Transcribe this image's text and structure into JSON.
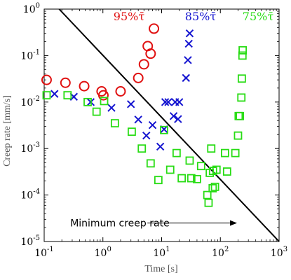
{
  "chart_data": {
    "type": "scatter",
    "xlabel": "Time [s]",
    "ylabel": "Creep rate [mm/s]",
    "xscale": "log",
    "yscale": "log",
    "xlim": [
      0.1,
      1000
    ],
    "ylim": [
      1e-05,
      1
    ],
    "x_ticks": [
      {
        "base": "10",
        "exp": "-1",
        "value": 0.1
      },
      {
        "base": "10",
        "exp": "0",
        "value": 1
      },
      {
        "base": "10",
        "exp": "1",
        "value": 10
      },
      {
        "base": "10",
        "exp": "2",
        "value": 100
      },
      {
        "base": "10",
        "exp": "3",
        "value": 1000
      }
    ],
    "y_ticks": [
      {
        "base": "10",
        "exp": "-5",
        "value": 1e-05
      },
      {
        "base": "10",
        "exp": "-4",
        "value": 0.0001
      },
      {
        "base": "10",
        "exp": "-3",
        "value": 0.001
      },
      {
        "base": "10",
        "exp": "-2",
        "value": 0.01
      },
      {
        "base": "10",
        "exp": "-1",
        "value": 0.1
      },
      {
        "base": "10",
        "exp": "0",
        "value": 1
      }
    ],
    "grid": false,
    "series": [
      {
        "name": "95%τ̄",
        "color": "#e01010",
        "marker": "circle",
        "points": [
          [
            0.11,
            0.03
          ],
          [
            0.23,
            0.026
          ],
          [
            0.48,
            0.022
          ],
          [
            0.95,
            0.017
          ],
          [
            1.02,
            0.014
          ],
          [
            2.0,
            0.017
          ],
          [
            4.0,
            0.033
          ],
          [
            5.0,
            0.065
          ],
          [
            5.8,
            0.16
          ],
          [
            6.5,
            0.11
          ],
          [
            7.4,
            0.38
          ]
        ]
      },
      {
        "name": "85%τ̄",
        "color": "#1414d0",
        "marker": "x",
        "points": [
          [
            0.15,
            0.015
          ],
          [
            0.32,
            0.013
          ],
          [
            0.62,
            0.01
          ],
          [
            1.4,
            0.0075
          ],
          [
            3.0,
            0.009
          ],
          [
            4.0,
            0.0042
          ],
          [
            5.5,
            0.0019
          ],
          [
            7.0,
            0.0032
          ],
          [
            9.5,
            0.0011
          ],
          [
            11,
            0.0026
          ],
          [
            11.5,
            0.01
          ],
          [
            13,
            0.01
          ],
          [
            16,
            0.005
          ],
          [
            17,
            0.01
          ],
          [
            19,
            0.0043
          ],
          [
            20,
            0.01
          ],
          [
            26,
            0.033
          ],
          [
            28,
            0.08
          ],
          [
            29,
            0.18
          ],
          [
            30,
            0.3
          ]
        ]
      },
      {
        "name": "75%τ̄",
        "color": "#28dc14",
        "marker": "square",
        "points": [
          [
            0.11,
            0.014
          ],
          [
            0.25,
            0.014
          ],
          [
            0.55,
            0.01
          ],
          [
            0.78,
            0.0062
          ],
          [
            1.05,
            0.0105
          ],
          [
            1.6,
            0.0035
          ],
          [
            3.1,
            0.0023
          ],
          [
            4.6,
            0.001
          ],
          [
            6.5,
            0.00048
          ],
          [
            8.8,
            0.00021
          ],
          [
            11,
            0.0025
          ],
          [
            14,
            0.00035
          ],
          [
            18,
            0.0008
          ],
          [
            22,
            0.00023
          ],
          [
            30,
            0.00055
          ],
          [
            32,
            0.00023
          ],
          [
            40,
            0.00022
          ],
          [
            47,
            0.00042
          ],
          [
            60,
            0.0001
          ],
          [
            63,
            6.8e-05
          ],
          [
            66,
            0.0003
          ],
          [
            70,
            0.001
          ],
          [
            74,
            0.00014
          ],
          [
            75,
            0.00033
          ],
          [
            81,
            0.00015
          ],
          [
            86,
            0.00035
          ],
          [
            120,
            0.0008
          ],
          [
            130,
            0.00032
          ],
          [
            180,
            0.0008
          ],
          [
            200,
            0.0019
          ],
          [
            205,
            0.005
          ],
          [
            215,
            0.005
          ],
          [
            228,
            0.0125
          ],
          [
            232,
            0.032
          ],
          [
            238,
            0.1
          ],
          [
            240,
            0.13
          ]
        ]
      }
    ],
    "reference_line": {
      "label": "Minimum creep rate",
      "from": [
        0.18,
        1.0
      ],
      "to": [
        1000,
        1e-05
      ]
    },
    "annotations": [
      {
        "text": "Minimum creep rate",
        "at": [
          1.1,
          2.5e-05
        ],
        "arrow_to": [
          25,
          2.5e-05
        ]
      }
    ]
  }
}
